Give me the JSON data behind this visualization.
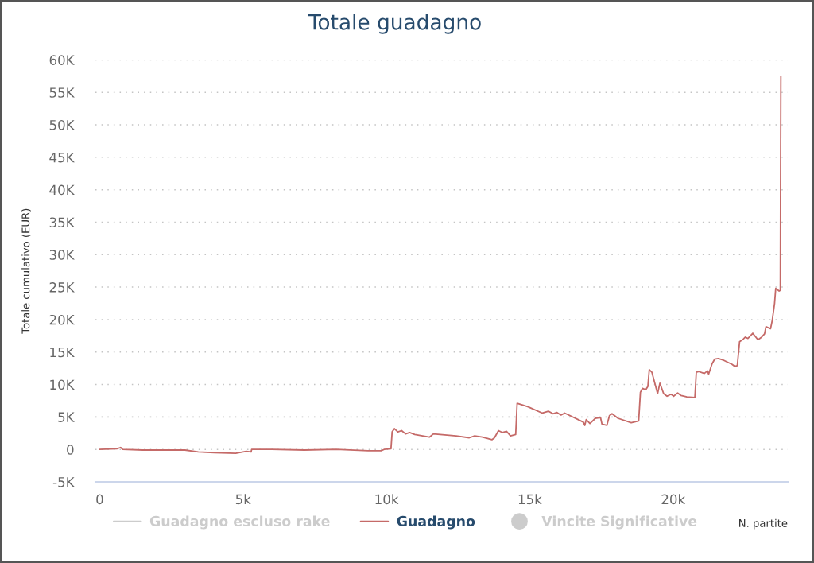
{
  "chart_data": {
    "type": "line",
    "title": "Totale guadagno",
    "xlabel": "N. partite",
    "ylabel": "Totale cumulativo (EUR)",
    "series": [
      {
        "name": "Guadagno escluso rake",
        "type": "line",
        "color": "#cccccc"
      },
      {
        "name": "Guadagno",
        "color": "#c56a68",
        "x": [
          0,
          600,
          730,
          800,
          1500,
          2970,
          3440,
          4000,
          4740,
          5110,
          5280,
          5300,
          6000,
          7140,
          8250,
          9360,
          9830,
          9920,
          10160,
          10200,
          10280,
          10400,
          10530,
          10670,
          10810,
          10990,
          11500,
          11640,
          12430,
          12890,
          13080,
          13350,
          13680,
          13770,
          13910,
          14050,
          14190,
          14330,
          14510,
          14560,
          14930,
          15440,
          15650,
          15810,
          15950,
          16090,
          16220,
          16410,
          16870,
          16920,
          16970,
          17100,
          17290,
          17470,
          17520,
          17690,
          17780,
          17870,
          18080,
          18540,
          18800,
          18860,
          18930,
          19050,
          19120,
          19170,
          19260,
          19460,
          19540,
          19670,
          19790,
          19930,
          20020,
          20160,
          20280,
          20480,
          20760,
          20810,
          20900,
          21090,
          21200,
          21240,
          21360,
          21450,
          21580,
          21730,
          22060,
          22150,
          22240,
          22320,
          22450,
          22520,
          22610,
          22780,
          22960,
          23090,
          23190,
          23240,
          23400,
          23460,
          23540,
          23580,
          23700,
          23740,
          23760
        ],
        "values": [
          0,
          100,
          300,
          0,
          -100,
          -100,
          -400,
          -500,
          -600,
          -300,
          -400,
          0,
          0,
          -100,
          0,
          -200,
          -200,
          0,
          100,
          2700,
          3200,
          2700,
          2900,
          2400,
          2600,
          2300,
          1900,
          2400,
          2100,
          1800,
          2100,
          1900,
          1500,
          1800,
          2900,
          2600,
          2800,
          2100,
          2300,
          7100,
          6600,
          5600,
          5900,
          5500,
          5700,
          5300,
          5600,
          5200,
          4200,
          3700,
          4600,
          4000,
          4800,
          4900,
          3900,
          3700,
          5200,
          5500,
          4800,
          4100,
          4400,
          8800,
          9400,
          9200,
          9700,
          12300,
          11900,
          8600,
          10200,
          8600,
          8200,
          8500,
          8200,
          8700,
          8300,
          8100,
          8000,
          11900,
          12000,
          11700,
          12100,
          11600,
          13200,
          13900,
          14000,
          13800,
          13100,
          12800,
          12900,
          16600,
          17000,
          17300,
          17100,
          17900,
          16900,
          17300,
          17800,
          18900,
          18600,
          19900,
          22500,
          24800,
          24400,
          24500,
          57500
        ]
      },
      {
        "name": "Vincite Significative",
        "type": "scatter",
        "color": "#cccccc",
        "marker": "circle"
      }
    ],
    "xlim": [
      -150,
      24000
    ],
    "xticks": [
      0,
      {
        "value": 5000,
        "label": "5k"
      },
      {
        "value": 10000,
        "label": "10k"
      },
      {
        "value": 15000,
        "label": "15k"
      },
      {
        "value": 20000,
        "label": "20k"
      }
    ],
    "ylim": [
      -5000,
      60000
    ],
    "yticks": [
      {
        "value": -5000,
        "label": "-5K"
      },
      0,
      {
        "value": 5000,
        "label": "5K"
      },
      {
        "value": 10000,
        "label": "10K"
      },
      {
        "value": 15000,
        "label": "15K"
      },
      {
        "value": 20000,
        "label": "20K"
      },
      {
        "value": 25000,
        "label": "25K"
      },
      {
        "value": 30000,
        "label": "30K"
      },
      {
        "value": 35000,
        "label": "35K"
      },
      {
        "value": 40000,
        "label": "40K"
      },
      {
        "value": 45000,
        "label": "45K"
      },
      {
        "value": 50000,
        "label": "50K"
      },
      {
        "value": 55000,
        "label": "55K"
      },
      {
        "value": 60000,
        "label": "60K"
      }
    ],
    "grid": "y",
    "legend": "bottom",
    "line_style": "solid"
  }
}
